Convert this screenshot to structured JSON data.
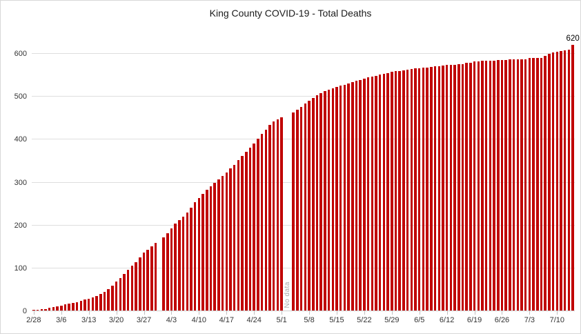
{
  "chart_data": {
    "type": "bar",
    "title": "King County COVID-19 - Total Deaths",
    "bar_color": "#C00000",
    "gridline_color": "#DEDEDE",
    "axis_color": "#BFBFBF",
    "no_data_color": "#A6A6A6",
    "grid": "horizontal",
    "legend": "none",
    "y_axis": {
      "ticks": [
        0,
        100,
        200,
        300,
        400,
        500,
        600
      ],
      "range": [
        0,
        620
      ]
    },
    "x_axis": {
      "tick_every": 7,
      "labels": [
        "2/28",
        "3/6",
        "3/13",
        "3/20",
        "3/27",
        "4/3",
        "4/10",
        "4/17",
        "4/24",
        "5/1",
        "5/8",
        "5/15",
        "5/22",
        "5/29",
        "6/5",
        "6/12",
        "6/19",
        "6/26",
        "7/3",
        "7/10"
      ]
    },
    "categories": [
      "2/28",
      "2/29",
      "3/1",
      "3/2",
      "3/3",
      "3/4",
      "3/5",
      "3/6",
      "3/7",
      "3/8",
      "3/9",
      "3/10",
      "3/11",
      "3/12",
      "3/13",
      "3/14",
      "3/15",
      "3/16",
      "3/17",
      "3/18",
      "3/19",
      "3/20",
      "3/21",
      "3/22",
      "3/23",
      "3/24",
      "3/25",
      "3/26",
      "3/27",
      "3/28",
      "3/29",
      "3/30",
      "3/31",
      "4/1",
      "4/2",
      "4/3",
      "4/4",
      "4/5",
      "4/6",
      "4/7",
      "4/8",
      "4/9",
      "4/10",
      "4/11",
      "4/12",
      "4/13",
      "4/14",
      "4/15",
      "4/16",
      "4/17",
      "4/18",
      "4/19",
      "4/20",
      "4/21",
      "4/22",
      "4/23",
      "4/24",
      "4/25",
      "4/26",
      "4/27",
      "4/28",
      "4/29",
      "4/30",
      "5/1",
      "5/2",
      "5/3",
      "5/4",
      "5/5",
      "5/6",
      "5/7",
      "5/8",
      "5/9",
      "5/10",
      "5/11",
      "5/12",
      "5/13",
      "5/14",
      "5/15",
      "5/16",
      "5/17",
      "5/18",
      "5/19",
      "5/20",
      "5/21",
      "5/22",
      "5/23",
      "5/24",
      "5/25",
      "5/26",
      "5/27",
      "5/28",
      "5/29",
      "5/30",
      "5/31",
      "6/1",
      "6/2",
      "6/3",
      "6/4",
      "6/5",
      "6/6",
      "6/7",
      "6/8",
      "6/9",
      "6/10",
      "6/11",
      "6/12",
      "6/13",
      "6/14",
      "6/15",
      "6/16",
      "6/17",
      "6/18",
      "6/19",
      "6/20",
      "6/21",
      "6/22",
      "6/23",
      "6/24",
      "6/25",
      "6/26",
      "6/27",
      "6/28",
      "6/29",
      "6/30",
      "7/1",
      "7/2",
      "7/3",
      "7/4",
      "7/5",
      "7/6",
      "7/7",
      "7/8",
      "7/9",
      "7/10",
      "7/11",
      "7/12",
      "7/13",
      "7/14"
    ],
    "values": [
      1,
      2,
      3,
      4,
      6,
      8,
      10,
      12,
      14,
      16,
      18,
      20,
      23,
      25,
      28,
      31,
      34,
      38,
      44,
      50,
      58,
      67,
      76,
      85,
      95,
      104,
      113,
      124,
      135,
      142,
      150,
      158,
      null,
      170,
      180,
      192,
      202,
      210,
      218,
      228,
      240,
      252,
      263,
      272,
      281,
      290,
      298,
      306,
      314,
      322,
      331,
      340,
      350,
      360,
      370,
      380,
      390,
      400,
      412,
      422,
      432,
      440,
      446,
      450,
      null,
      null,
      462,
      468,
      475,
      482,
      489,
      496,
      502,
      507,
      512,
      515,
      518,
      521,
      524,
      526,
      529,
      532,
      535,
      538,
      540,
      543,
      545,
      547,
      550,
      552,
      554,
      556,
      558,
      559,
      560,
      561,
      563,
      564,
      565,
      566,
      567,
      568,
      569,
      570,
      571,
      572,
      573,
      573,
      574,
      575,
      577,
      578,
      580,
      581,
      582,
      582,
      583,
      583,
      584,
      584,
      584,
      585,
      585,
      585,
      586,
      586,
      588,
      588,
      588,
      589,
      594,
      598,
      601,
      603,
      605,
      606,
      608,
      620
    ],
    "annotations": {
      "no_data": {
        "text": "No data",
        "indices": [
          64,
          65
        ]
      },
      "value_labels": [
        {
          "index": 137,
          "text": "620"
        }
      ]
    }
  }
}
